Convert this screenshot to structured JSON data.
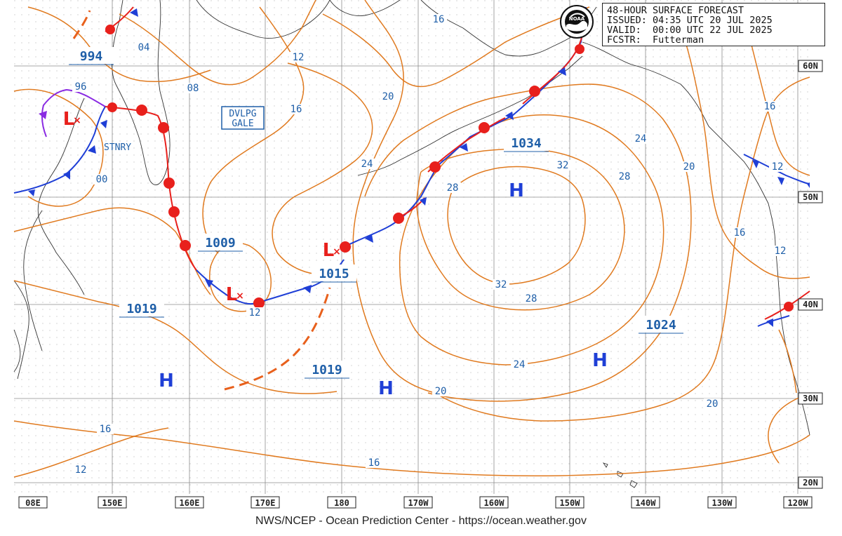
{
  "header": {
    "title": "48-HOUR SURFACE FORECAST",
    "issued": "ISSUED: 04:35 UTC 20 JUL 2025",
    "valid": "VALID:  00:00 UTC 22 JUL 2025",
    "forecaster": "FCSTR:  Futterman"
  },
  "logo": {
    "text": "NOAA"
  },
  "footer": {
    "credit": "NWS/NCEP - Ocean Prediction Center - https://ocean.weather.gov"
  },
  "longitude_labels": [
    "08E",
    "150E",
    "160E",
    "170E",
    "180",
    "170W",
    "160W",
    "150W",
    "140W",
    "130W",
    "120W"
  ],
  "latitude_labels": [
    "60N",
    "50N",
    "40N",
    "30N",
    "20N"
  ],
  "pressure_centers": [
    {
      "type": "L",
      "pressure": "994"
    },
    {
      "type": "L",
      "pressure": "1009"
    },
    {
      "type": "L",
      "pressure": "1015"
    },
    {
      "type": "H",
      "pressure": "1034"
    },
    {
      "type": "H",
      "pressure": "1019"
    },
    {
      "type": "H",
      "pressure": "1019"
    },
    {
      "type": "H",
      "pressure": "1024"
    },
    {
      "type": "H",
      "pressure": ""
    }
  ],
  "warnings": {
    "gale_line1": "DVLPG",
    "gale_line2": "GALE",
    "stationary": "STNRY"
  },
  "isobar_labels": [
    "04",
    "96",
    "08",
    "00",
    "12",
    "16",
    "20",
    "24",
    "28",
    "32",
    "32",
    "28",
    "24",
    "20",
    "16",
    "12",
    "12",
    "16",
    "20",
    "24",
    "28",
    "12",
    "16",
    "12",
    "16",
    "20",
    "16",
    "12"
  ],
  "colors": {
    "isobar": "#e07a1f",
    "warm_front": "#e8201c",
    "cold_front": "#1f3fd6",
    "stationary_occluded": "#8a2be2",
    "label_text": "#1f5fa8",
    "high": "#1f3fd6",
    "low": "#e8201c",
    "grid": "#9a9a9a",
    "coast": "#333333"
  }
}
